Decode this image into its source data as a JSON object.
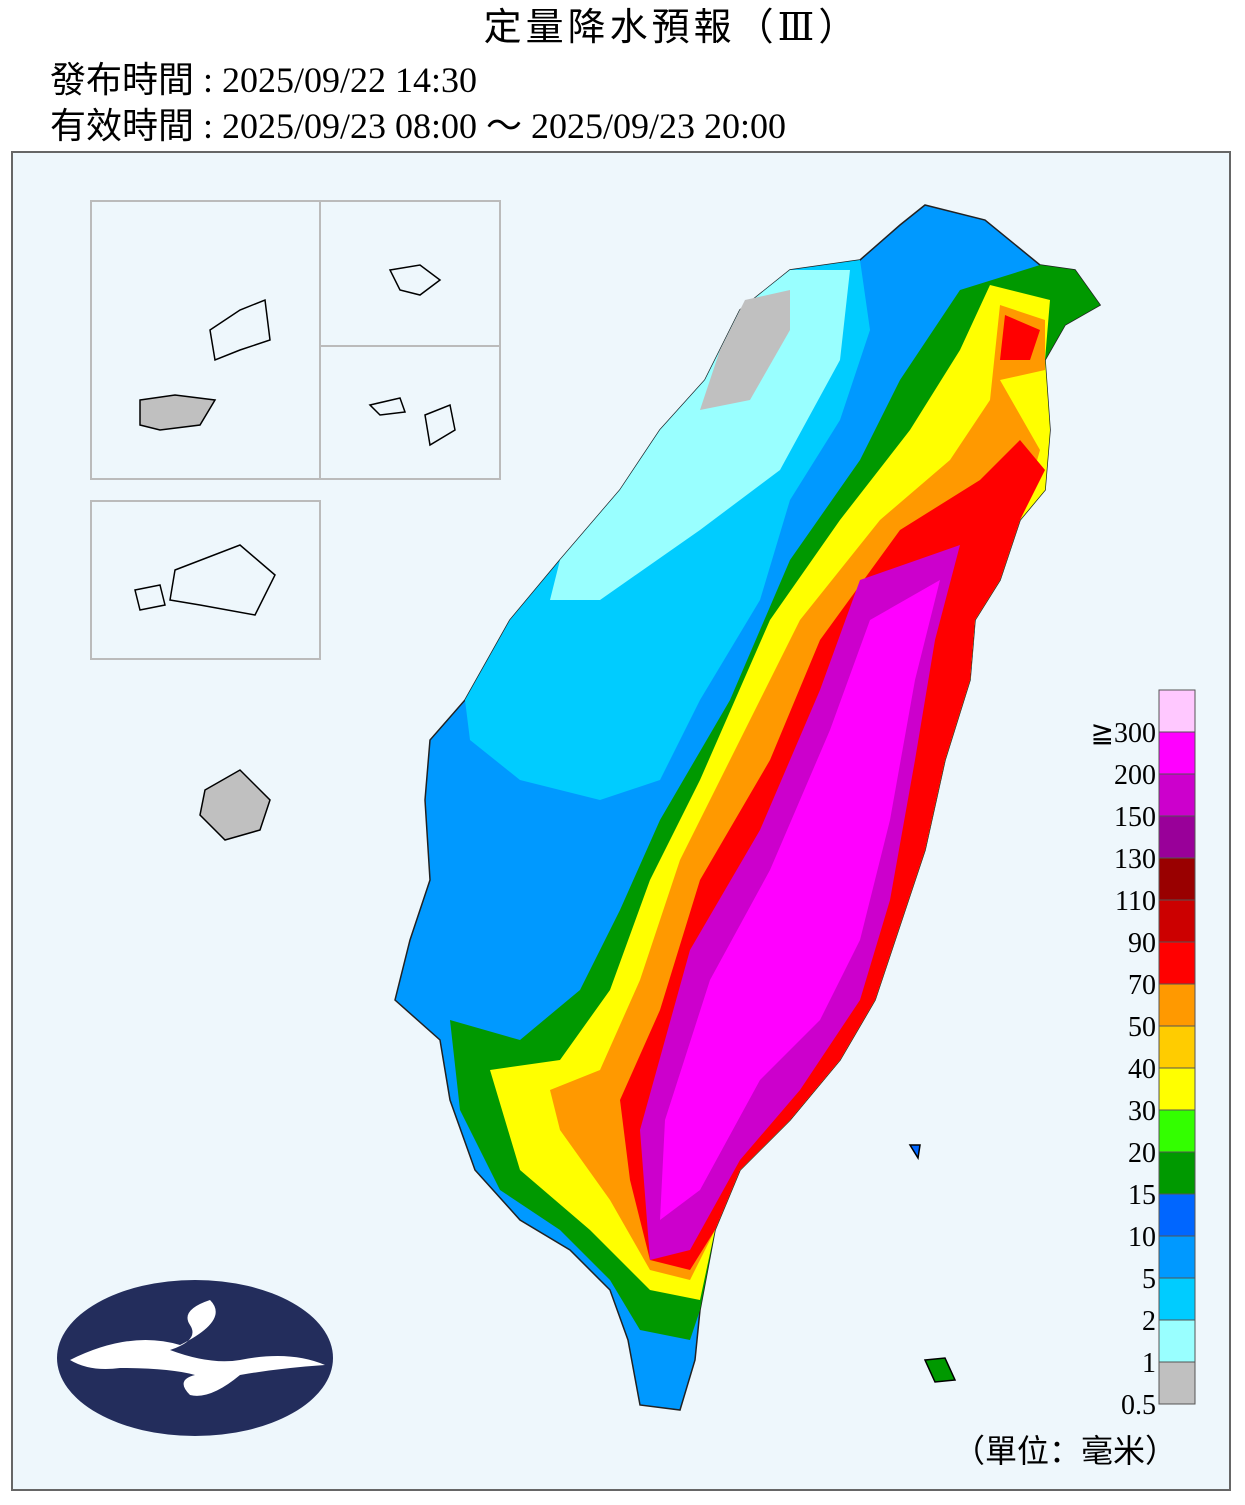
{
  "header": {
    "title": "定量降水預報（Ⅲ）",
    "issued": "發布時間 : 2025/09/22 14:30",
    "valid": "有效時間 : 2025/09/23 08:00 ～ 2025/09/23 20:00"
  },
  "legend": {
    "colors": [
      "#ffc8ff",
      "#ff00ff",
      "#cc00cc",
      "#990099",
      "#990000",
      "#cc0000",
      "#ff0000",
      "#ff9900",
      "#ffcc00",
      "#ffff00",
      "#33ff00",
      "#009900",
      "#0066ff",
      "#0099ff",
      "#00ccff",
      "#99ffff",
      "#c0c0c0"
    ],
    "labels": [
      "≧300",
      "200",
      "150",
      "130",
      "110",
      "90",
      "70",
      "50",
      "40",
      "30",
      "20",
      "15",
      "10",
      "5",
      "2",
      "1",
      "0.5"
    ],
    "unit": "（單位：毫米）"
  }
}
